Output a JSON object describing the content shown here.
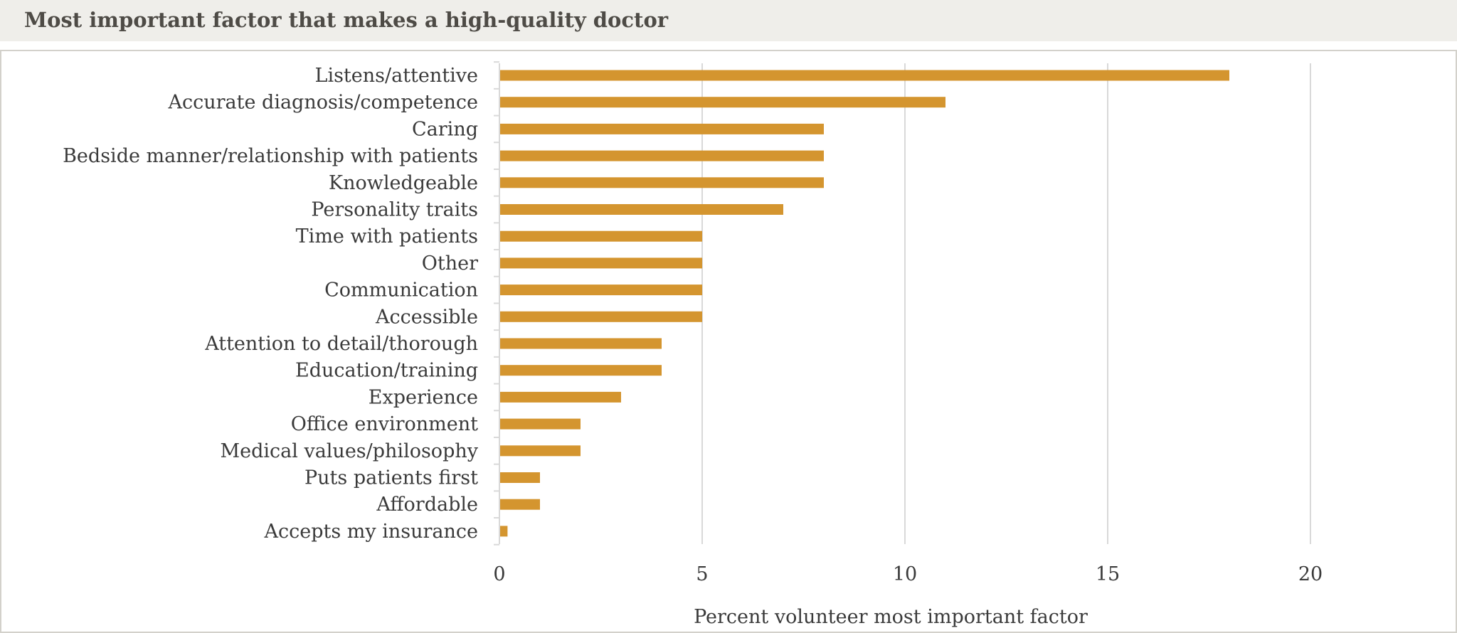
{
  "header": {
    "title": "Most important factor that makes a high-quality doctor"
  },
  "colors": {
    "bar": "#d4952f",
    "grid": "#d9d9d9",
    "header_bg": "#efeeea",
    "title_text": "#4e4b46",
    "border": "#d3d1cb"
  },
  "chart_data": {
    "type": "bar",
    "orientation": "horizontal",
    "title": "Most important factor that makes a high-quality doctor",
    "xlabel": "Percent volunteer most important factor",
    "ylabel": "",
    "xlim": [
      0,
      20
    ],
    "xticks": [
      0,
      5,
      10,
      15,
      20
    ],
    "grid": true,
    "legend": "none",
    "categories": [
      "Listens/attentive",
      "Accurate diagnosis/competence",
      "Caring",
      "Bedside manner/relationship with patients",
      "Knowledgeable",
      "Personality traits",
      "Time with patients",
      "Other",
      "Communication",
      "Accessible",
      "Attention to detail/thorough",
      "Education/training",
      "Experience",
      "Office environment",
      "Medical values/philosophy",
      "Puts patients first",
      "Affordable",
      "Accepts my insurance"
    ],
    "values": [
      18,
      11,
      8,
      8,
      8,
      7,
      5,
      5,
      5,
      5,
      4,
      4,
      3,
      2,
      2,
      1,
      1,
      0.2
    ]
  }
}
